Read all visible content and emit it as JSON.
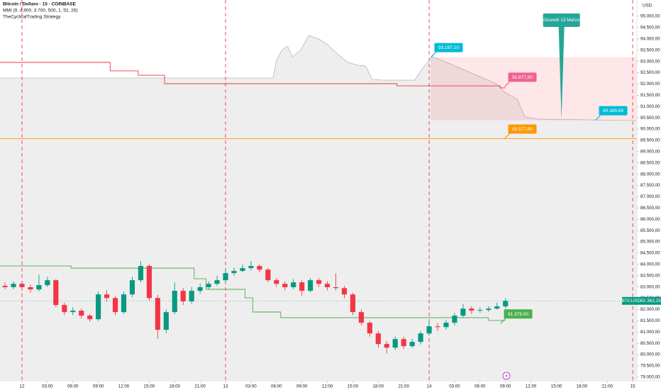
{
  "chart_data": {
    "type": "candlestick",
    "title": "Bitcoin / Dollaro · 15 · COINBASE",
    "indicators": [
      "MMI (9, 4,900, 3.700, 500, 1, 52, 26)",
      "TheCyclicalTrading Strategy"
    ],
    "y_axis_unit": "USD",
    "xlim": [
      -2.59,
      72.49
    ],
    "ylim": [
      78840,
      95723
    ],
    "grid": false,
    "xticks": [
      {
        "value": 0,
        "label": "12"
      },
      {
        "value": 3,
        "label": "03:00"
      },
      {
        "value": 6,
        "label": "06:00"
      },
      {
        "value": 9,
        "label": "09:00"
      },
      {
        "value": 12,
        "label": "12:00"
      },
      {
        "value": 15,
        "label": "15:00"
      },
      {
        "value": 18,
        "label": "18:00"
      },
      {
        "value": 21,
        "label": "21:00"
      },
      {
        "value": 24,
        "label": "13"
      },
      {
        "value": 27,
        "label": "03:00"
      },
      {
        "value": 30,
        "label": "06:00"
      },
      {
        "value": 33,
        "label": "09:00"
      },
      {
        "value": 36,
        "label": "12:00"
      },
      {
        "value": 39,
        "label": "15:00"
      },
      {
        "value": 42,
        "label": "18:00"
      },
      {
        "value": 45,
        "label": "21:00"
      },
      {
        "value": 48,
        "label": "14"
      },
      {
        "value": 51,
        "label": "03:00"
      },
      {
        "value": 54,
        "label": "06:00"
      },
      {
        "value": 57,
        "label": "09:00"
      },
      {
        "value": 60,
        "label": "12:00"
      },
      {
        "value": 63,
        "label": "15:00"
      },
      {
        "value": 66,
        "label": "18:00"
      },
      {
        "value": 69,
        "label": "21:00"
      },
      {
        "value": 72,
        "label": "15"
      }
    ],
    "yticks": [
      {
        "value": 79000,
        "label": "79.000,00"
      },
      {
        "value": 79500,
        "label": "79.500,00"
      },
      {
        "value": 80000,
        "label": "80.000,00"
      },
      {
        "value": 80500,
        "label": "80.500,00"
      },
      {
        "value": 81000,
        "label": "81.000,00"
      },
      {
        "value": 81500,
        "label": "81.500,00"
      },
      {
        "value": 82000,
        "label": "82.000,00"
      },
      {
        "value": 82500,
        "label": "82.500,00"
      },
      {
        "value": 83000,
        "label": "83.000,00"
      },
      {
        "value": 83500,
        "label": "83.500,00"
      },
      {
        "value": 84000,
        "label": "84.000,00"
      },
      {
        "value": 84500,
        "label": "84.500,00"
      },
      {
        "value": 85000,
        "label": "85.000,00"
      },
      {
        "value": 85500,
        "label": "85.500,00"
      },
      {
        "value": 86000,
        "label": "86.000,00"
      },
      {
        "value": 86500,
        "label": "86.500,00"
      },
      {
        "value": 87000,
        "label": "87.000,00"
      },
      {
        "value": 87500,
        "label": "87.500,00"
      },
      {
        "value": 88000,
        "label": "88.000,00"
      },
      {
        "value": 88500,
        "label": "88.500,00"
      },
      {
        "value": 89000,
        "label": "89.000,00"
      },
      {
        "value": 89500,
        "label": "89.500,00"
      },
      {
        "value": 90000,
        "label": "90.000,00"
      },
      {
        "value": 90500,
        "label": "90.500,00"
      },
      {
        "value": 91000,
        "label": "91.000,00"
      },
      {
        "value": 91500,
        "label": "91.500,00"
      },
      {
        "value": 92000,
        "label": "92.000,00"
      },
      {
        "value": 92500,
        "label": "92.500,00"
      },
      {
        "value": 93000,
        "label": "93.000,00"
      },
      {
        "value": 93500,
        "label": "93.500,00"
      },
      {
        "value": 94000,
        "label": "94.000,00"
      },
      {
        "value": 94500,
        "label": "94.500,00"
      },
      {
        "value": 95000,
        "label": "95.000,00"
      }
    ],
    "candles": {
      "up_color": "#089981",
      "down_color": "#f23645",
      "x": [
        -2,
        -1,
        0,
        1,
        2,
        3,
        4,
        5,
        6,
        7,
        8,
        9,
        10,
        11,
        12,
        13,
        14,
        15,
        16,
        17,
        18,
        19,
        20,
        21,
        22,
        23,
        24,
        25,
        26,
        27,
        28,
        29,
        30,
        31,
        32,
        33,
        34,
        35,
        36,
        37,
        38,
        39,
        40,
        41,
        42,
        43,
        44,
        45,
        46,
        47,
        48,
        49,
        50,
        51,
        52,
        53,
        54,
        55,
        56,
        57
      ],
      "open": [
        83050,
        82990,
        83140,
        82990,
        82890,
        83080,
        83300,
        82200,
        81885,
        81950,
        81730,
        81570,
        82670,
        82510,
        81885,
        82670,
        83300,
        83930,
        82510,
        81100,
        81885,
        82830,
        82360,
        82830,
        82990,
        83140,
        83300,
        83615,
        83710,
        83835,
        83930,
        83770,
        83300,
        83140,
        82990,
        83205,
        82830,
        83300,
        83140,
        82990,
        82950,
        82670,
        81885,
        81415,
        80940,
        80470,
        80310,
        80690,
        80375,
        80565,
        80940,
        81255,
        81220,
        81415,
        81730,
        82040,
        81950,
        81980,
        82040,
        82140
      ],
      "high": [
        83200,
        83250,
        83250,
        83100,
        83550,
        83450,
        83350,
        82300,
        82100,
        82050,
        81800,
        82800,
        82850,
        82600,
        82800,
        83450,
        84150,
        84000,
        82650,
        82000,
        83200,
        82950,
        83000,
        83150,
        83250,
        83500,
        83800,
        83850,
        84000,
        84150,
        84000,
        83850,
        83400,
        83250,
        83350,
        83300,
        83400,
        83400,
        83250,
        83600,
        83050,
        82750,
        82000,
        81500,
        81050,
        80600,
        80800,
        80800,
        80700,
        81050,
        81500,
        81400,
        81550,
        81850,
        82250,
        82150,
        82100,
        82150,
        82300,
        82500
      ],
      "low": [
        82900,
        82900,
        82850,
        82750,
        82800,
        83000,
        82100,
        81750,
        81750,
        81600,
        81450,
        81500,
        82350,
        81750,
        81800,
        82550,
        83200,
        82400,
        80700,
        80950,
        81800,
        82200,
        82250,
        82700,
        82900,
        83050,
        83200,
        83500,
        83650,
        83750,
        83650,
        83200,
        83000,
        82850,
        82900,
        82600,
        82750,
        83000,
        82850,
        82850,
        82500,
        81750,
        81300,
        80800,
        80300,
        80050,
        80200,
        80250,
        80300,
        80450,
        80850,
        81050,
        81100,
        81300,
        81650,
        81800,
        81850,
        81900,
        82000,
        82050
      ],
      "close": [
        82990,
        83140,
        82990,
        82890,
        83080,
        83300,
        82200,
        81885,
        81950,
        81730,
        81570,
        82670,
        82510,
        81885,
        82670,
        83300,
        83930,
        82510,
        81100,
        81885,
        82830,
        82360,
        82830,
        82990,
        83140,
        83300,
        83615,
        83710,
        83835,
        83930,
        83770,
        83300,
        83140,
        82990,
        83205,
        82830,
        83300,
        83140,
        82990,
        82950,
        82670,
        81885,
        81415,
        80940,
        80470,
        80310,
        80690,
        80375,
        80565,
        80940,
        81255,
        81220,
        81415,
        81730,
        82040,
        81950,
        81980,
        82040,
        82140,
        82383
      ]
    },
    "band_area": {
      "color": "#b8b8b8",
      "fill": "rgba(200,200,200,0.3)",
      "x": [
        -2.59,
        29.6,
        30.0,
        30.7,
        31.3,
        31.9,
        32.9,
        33.8,
        35.0,
        35.9,
        37.1,
        38.4,
        39.6,
        40.5,
        41.3,
        42.6,
        46.3,
        47.3,
        48.4,
        49.1,
        55.9,
        56.9,
        58.4,
        59.3,
        61.0,
        72.49
      ],
      "values": [
        92265,
        92265,
        93051,
        93522,
        93680,
        93208,
        93522,
        94151,
        93994,
        93774,
        93365,
        92956,
        92830,
        92799,
        92202,
        92170,
        92170,
        92736,
        93208,
        93114,
        92013,
        91636,
        91321,
        90535,
        90441,
        90378
      ]
    },
    "lines": [
      {
        "color": "#f23645",
        "x": [
          -2.59,
          10.4,
          13.7,
          16.8,
          44.2,
          56.4,
          57.0
        ],
        "values": [
          92956,
          92580,
          92390,
          92013,
          91918,
          91825,
          91825
        ]
      },
      {
        "color": "#4caf50",
        "x": [
          -2.59,
          5.8,
          20.3,
          21.7,
          26.3,
          27.2,
          30.5,
          55.0,
          57.0
        ],
        "values": [
          83930,
          83835,
          83365,
          82896,
          82518,
          81890,
          81638,
          81513,
          81513
        ]
      }
    ],
    "zone": {
      "x": 48.2,
      "from": 90389.89,
      "to": 93187.1,
      "color": "rgba(242,54,69,0.12)"
    },
    "session_lines": {
      "color": "#f23645",
      "x": [
        0,
        24,
        48,
        72
      ]
    },
    "levels": [
      {
        "value": 89577,
        "color": "#ff9800"
      }
    ],
    "markers": [
      {
        "x": 48.2,
        "value": 93187.1,
        "label": "93.187,10",
        "color": "#00bcd4"
      },
      {
        "x": 56.9,
        "value": 91877,
        "label": "91.877,00",
        "color": "#f06292"
      },
      {
        "x": 67.6,
        "value": 90389.89,
        "label": "90.389,89",
        "color": "#00bcd4"
      },
      {
        "x": 56.9,
        "value": 89577,
        "label": "89.577,00",
        "color": "#ff9800"
      },
      {
        "x": 56.4,
        "value": 81379,
        "label": "81.379,00",
        "color": "#4caf50"
      }
    ],
    "annotation": {
      "text": "Giovedì 13 Marzo",
      "x": 63.6,
      "value": 90450,
      "color": "#26a69a"
    },
    "last_price": {
      "symbol": "BTCUSD",
      "value": 82383.25,
      "label": "82.383,25",
      "color": "#089981"
    }
  }
}
